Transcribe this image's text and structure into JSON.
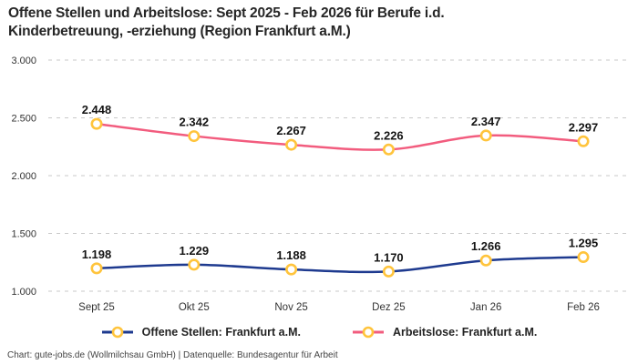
{
  "title_lines": [
    "Offene Stellen und Arbeitslose: Sept 2025 - Feb 2026 für Berufe i.d.",
    "Kinderbetreuung, -erziehung (Region Frankfurt a.M.)"
  ],
  "footer": "Chart: gute-jobs.de (Wollmilchsau GmbH) | Datenquelle: Bundesagentur für Arbeit",
  "colors": {
    "series_blue": "#1E3A8F",
    "series_pink": "#F25C7E",
    "marker_ring": "#FFC43C",
    "marker_fill": "#FFFFFF",
    "grid": "#C9C9C9",
    "title_text": "#262626",
    "axis_text": "#333333",
    "label_text": "#141414"
  },
  "legend": {
    "items": [
      {
        "label": "Offene Stellen: Frankfurt a.M.",
        "color": "#1E3A8F"
      },
      {
        "label": "Arbeitslose: Frankfurt a.M.",
        "color": "#F25C7E"
      }
    ]
  },
  "chart_data": {
    "type": "line",
    "title": "Offene Stellen und Arbeitslose: Sept 2025 - Feb 2026 für Berufe i.d. Kinderbetreuung, -erziehung (Region Frankfurt a.M.)",
    "categories": [
      "Sept 25",
      "Okt 25",
      "Nov 25",
      "Dez 25",
      "Jan 26",
      "Feb 26"
    ],
    "series": [
      {
        "name": "Offene Stellen: Frankfurt a.M.",
        "color": "#1E3A8F",
        "values": [
          1198,
          1229,
          1188,
          1170,
          1266,
          1295
        ],
        "value_labels": [
          "1.198",
          "1.229",
          "1.188",
          "1.170",
          "1.266",
          "1.295"
        ]
      },
      {
        "name": "Arbeitslose: Frankfurt a.M.",
        "color": "#F25C7E",
        "values": [
          2448,
          2342,
          2267,
          2226,
          2347,
          2297
        ],
        "value_labels": [
          "2.448",
          "2.342",
          "2.267",
          "2.226",
          "2.347",
          "2.297"
        ]
      }
    ],
    "ylim": [
      1000,
      3000
    ],
    "yticks": [
      3000,
      2500,
      2000,
      1500,
      1000
    ],
    "ytick_labels": [
      "3.000",
      "2.500",
      "2.000",
      "1.500",
      "1.000"
    ],
    "xlabel": "",
    "ylabel": "",
    "grid": "horizontal-dashed",
    "legend_position": "bottom",
    "marker": "circle-ring-yellow"
  }
}
